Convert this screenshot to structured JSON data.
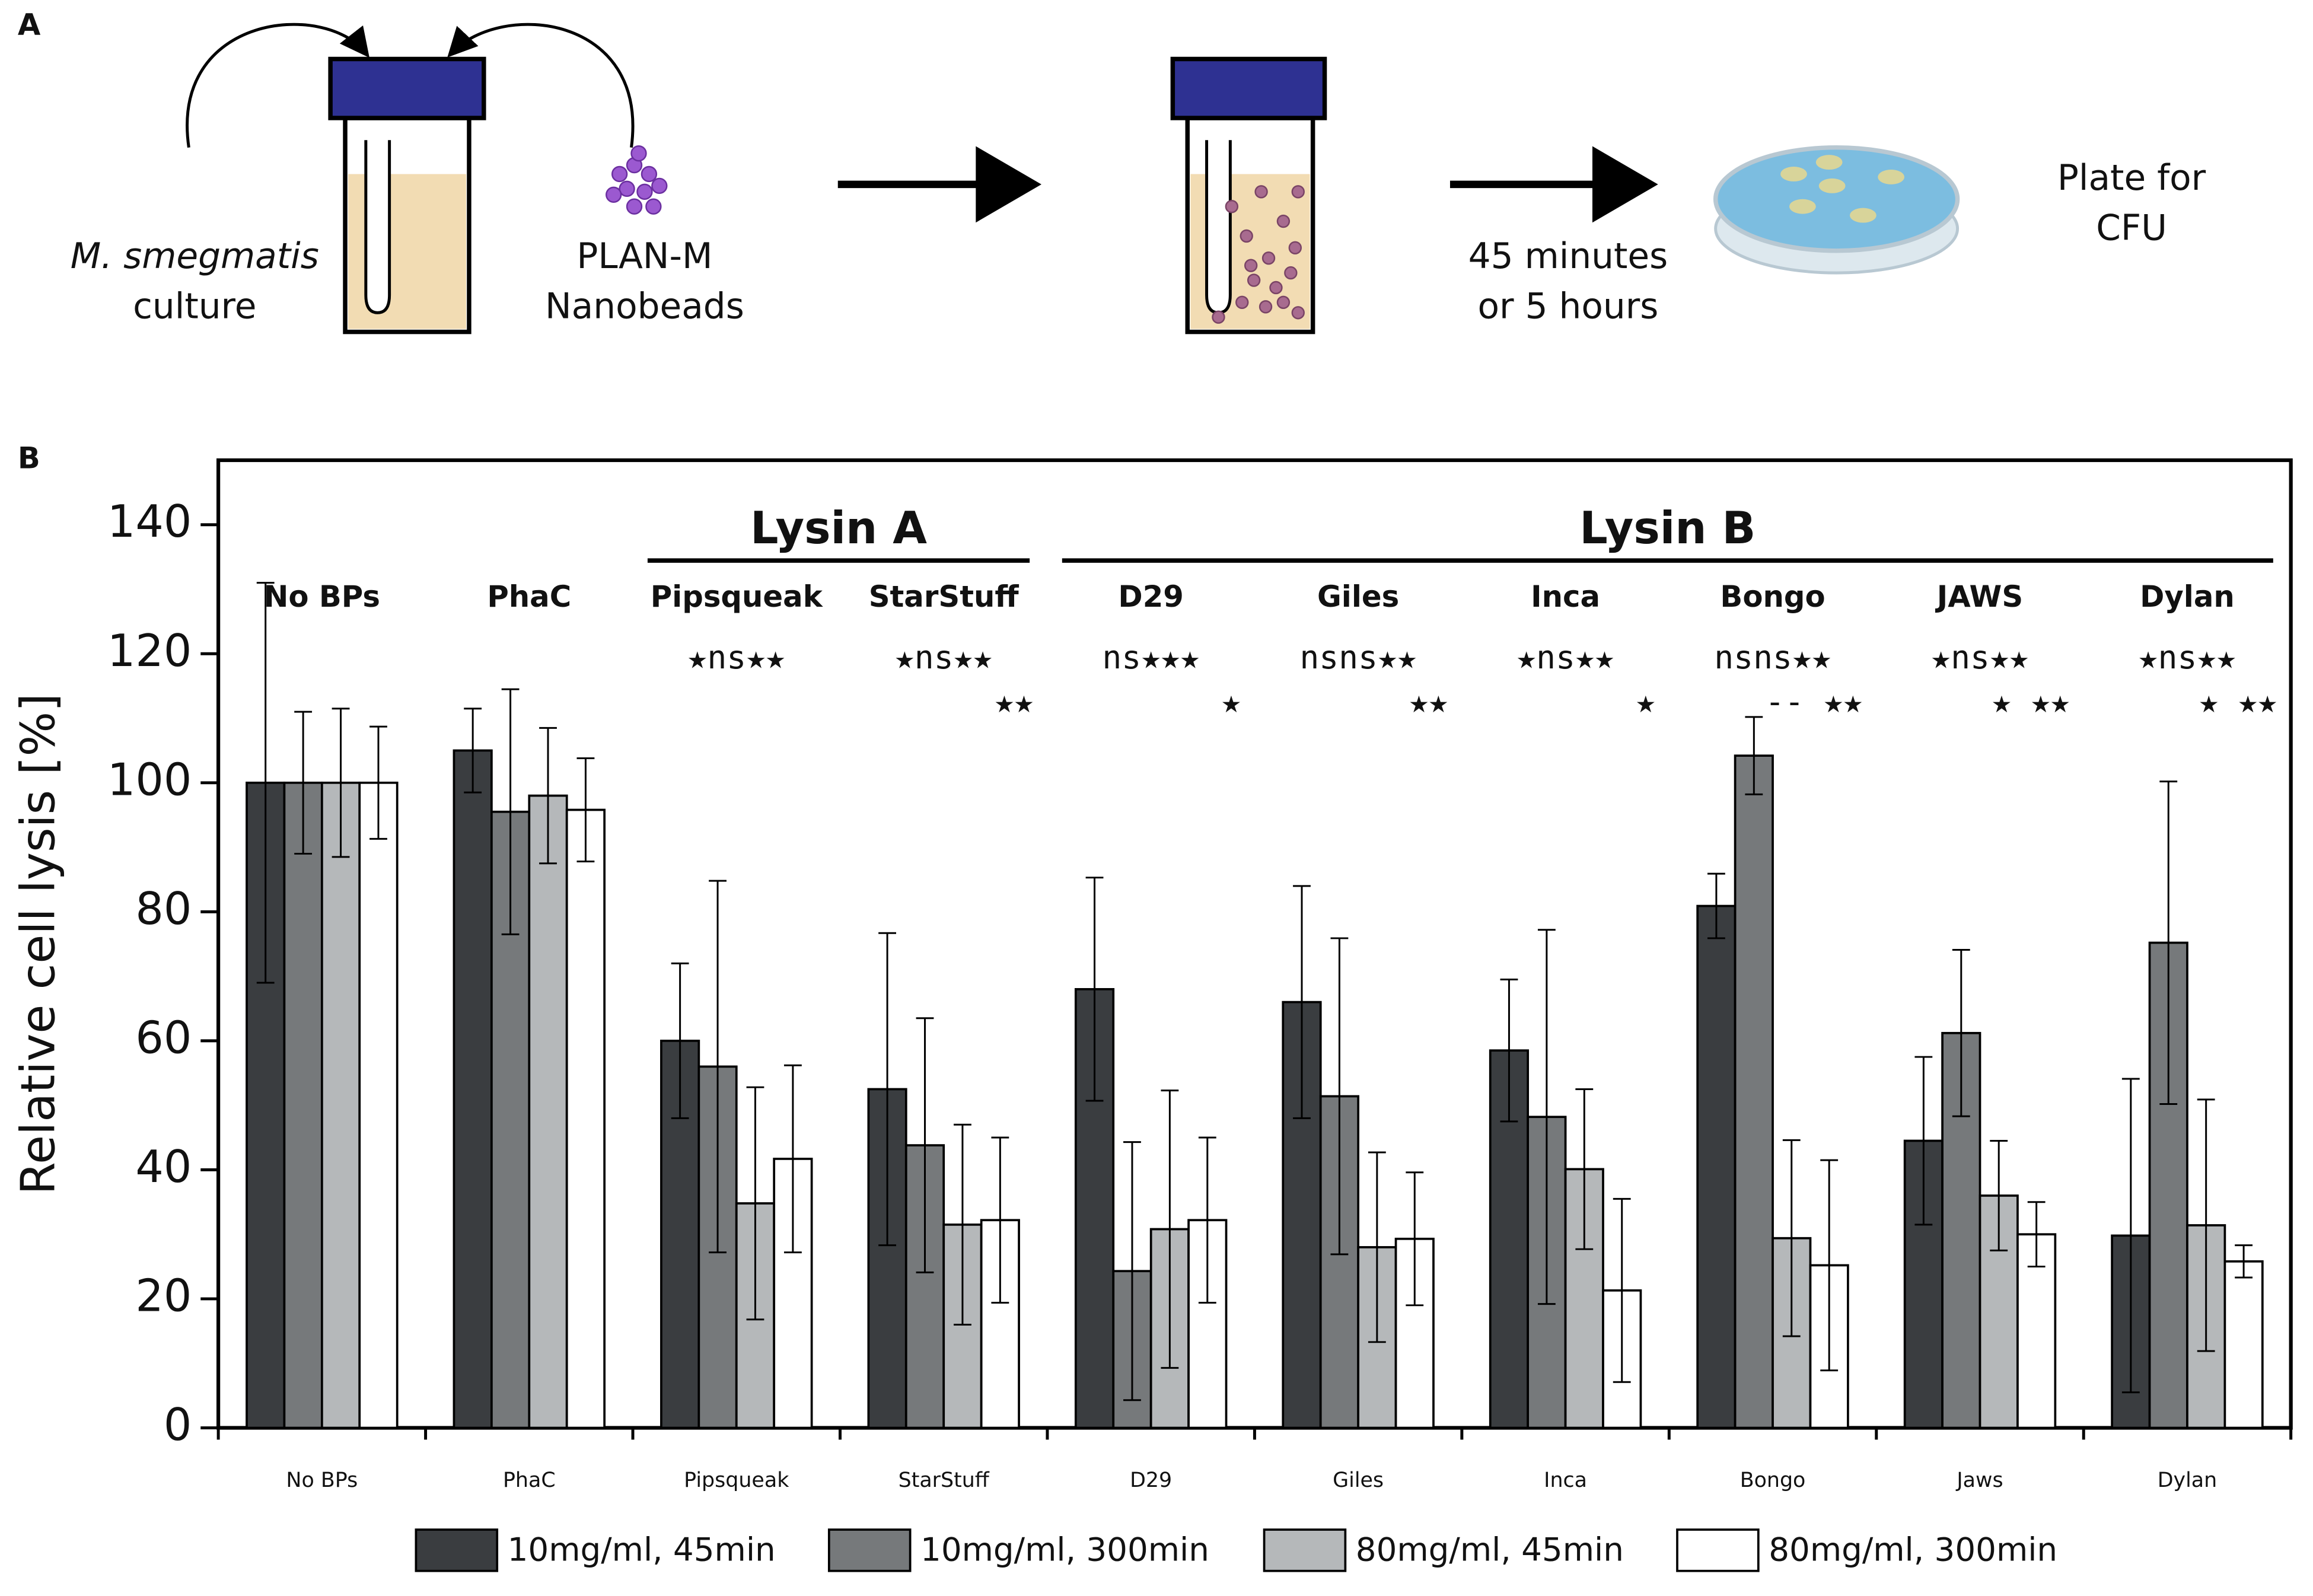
{
  "panel_labels": [
    "A",
    "B"
  ],
  "diagram": {
    "culture": [
      "M. smegmatis",
      "culture"
    ],
    "beads": [
      "PLAN-M",
      "Nanobeads"
    ],
    "time": [
      "45 minutes",
      "or 5 hours"
    ],
    "plate": [
      "Plate for",
      "CFU"
    ]
  },
  "chart_data": {
    "type": "bar",
    "y_label": "Relative cell lysis [%]",
    "categories": [
      "No BPs",
      "PhaC",
      "Pipsqueak",
      "StarStuff",
      "D29",
      "Giles",
      "Inca",
      "Bongo",
      "Jaws",
      "Dylan"
    ],
    "header_labels": [
      "No BPs",
      "PhaC",
      "Pipsqueak",
      "StarStuff",
      "D29",
      "Giles",
      "Inca",
      "Bongo",
      "JAWS",
      "Dylan"
    ],
    "group_labels": [
      "Lysin A",
      "Lysin B"
    ],
    "significance": [
      [
        null,
        null
      ],
      [
        null,
        null
      ],
      [
        "★ns★★",
        null
      ],
      [
        "★ns★★",
        "★★"
      ],
      [
        "ns★★★",
        "★"
      ],
      [
        "nsns★★",
        "★★"
      ],
      [
        "★ns★★",
        "★"
      ],
      [
        "nsns★★",
        "-- ★★"
      ],
      [
        "★ns★★",
        "★   ★★"
      ],
      [
        "★ns★★",
        "★   ★★"
      ]
    ],
    "series": [
      {
        "name": "10mg/ml, 45min",
        "color": "#3a3d40",
        "values": [
          100,
          105,
          60,
          52.5,
          68,
          66,
          58.5,
          80.9,
          44.5,
          29.8
        ],
        "errors": [
          31,
          6.5,
          12,
          24.2,
          17.3,
          18,
          11,
          5,
          13,
          24.3
        ]
      },
      {
        "name": "10mg/ml, 300min",
        "color": "#76797b",
        "values": [
          100,
          95.5,
          56,
          43.8,
          24.3,
          51.4,
          48.2,
          104.2,
          61.2,
          75.2
        ],
        "errors": [
          11,
          19,
          28.8,
          19.7,
          20,
          24.5,
          29,
          6,
          12.9,
          25
        ]
      },
      {
        "name": "80mg/ml, 45min",
        "color": "#b5b8ba",
        "values": [
          100,
          98,
          34.8,
          31.5,
          30.8,
          28,
          40.1,
          29.4,
          36,
          31.4
        ],
        "errors": [
          11.5,
          10.5,
          18,
          15.5,
          21.5,
          14.7,
          12.4,
          15.2,
          8.5,
          19.5
        ]
      },
      {
        "name": "80mg/ml, 300min",
        "color": "#ffffff",
        "values": [
          100,
          95.8,
          41.7,
          32.2,
          32.2,
          29.3,
          21.3,
          25.2,
          30,
          25.8
        ],
        "errors": [
          8.7,
          8,
          14.5,
          12.8,
          12.8,
          10.3,
          14.2,
          16.3,
          5,
          2.5
        ]
      }
    ],
    "ylim": [
      0,
      150
    ],
    "yticks": [
      0,
      20,
      40,
      60,
      80,
      100,
      120,
      140
    ]
  }
}
